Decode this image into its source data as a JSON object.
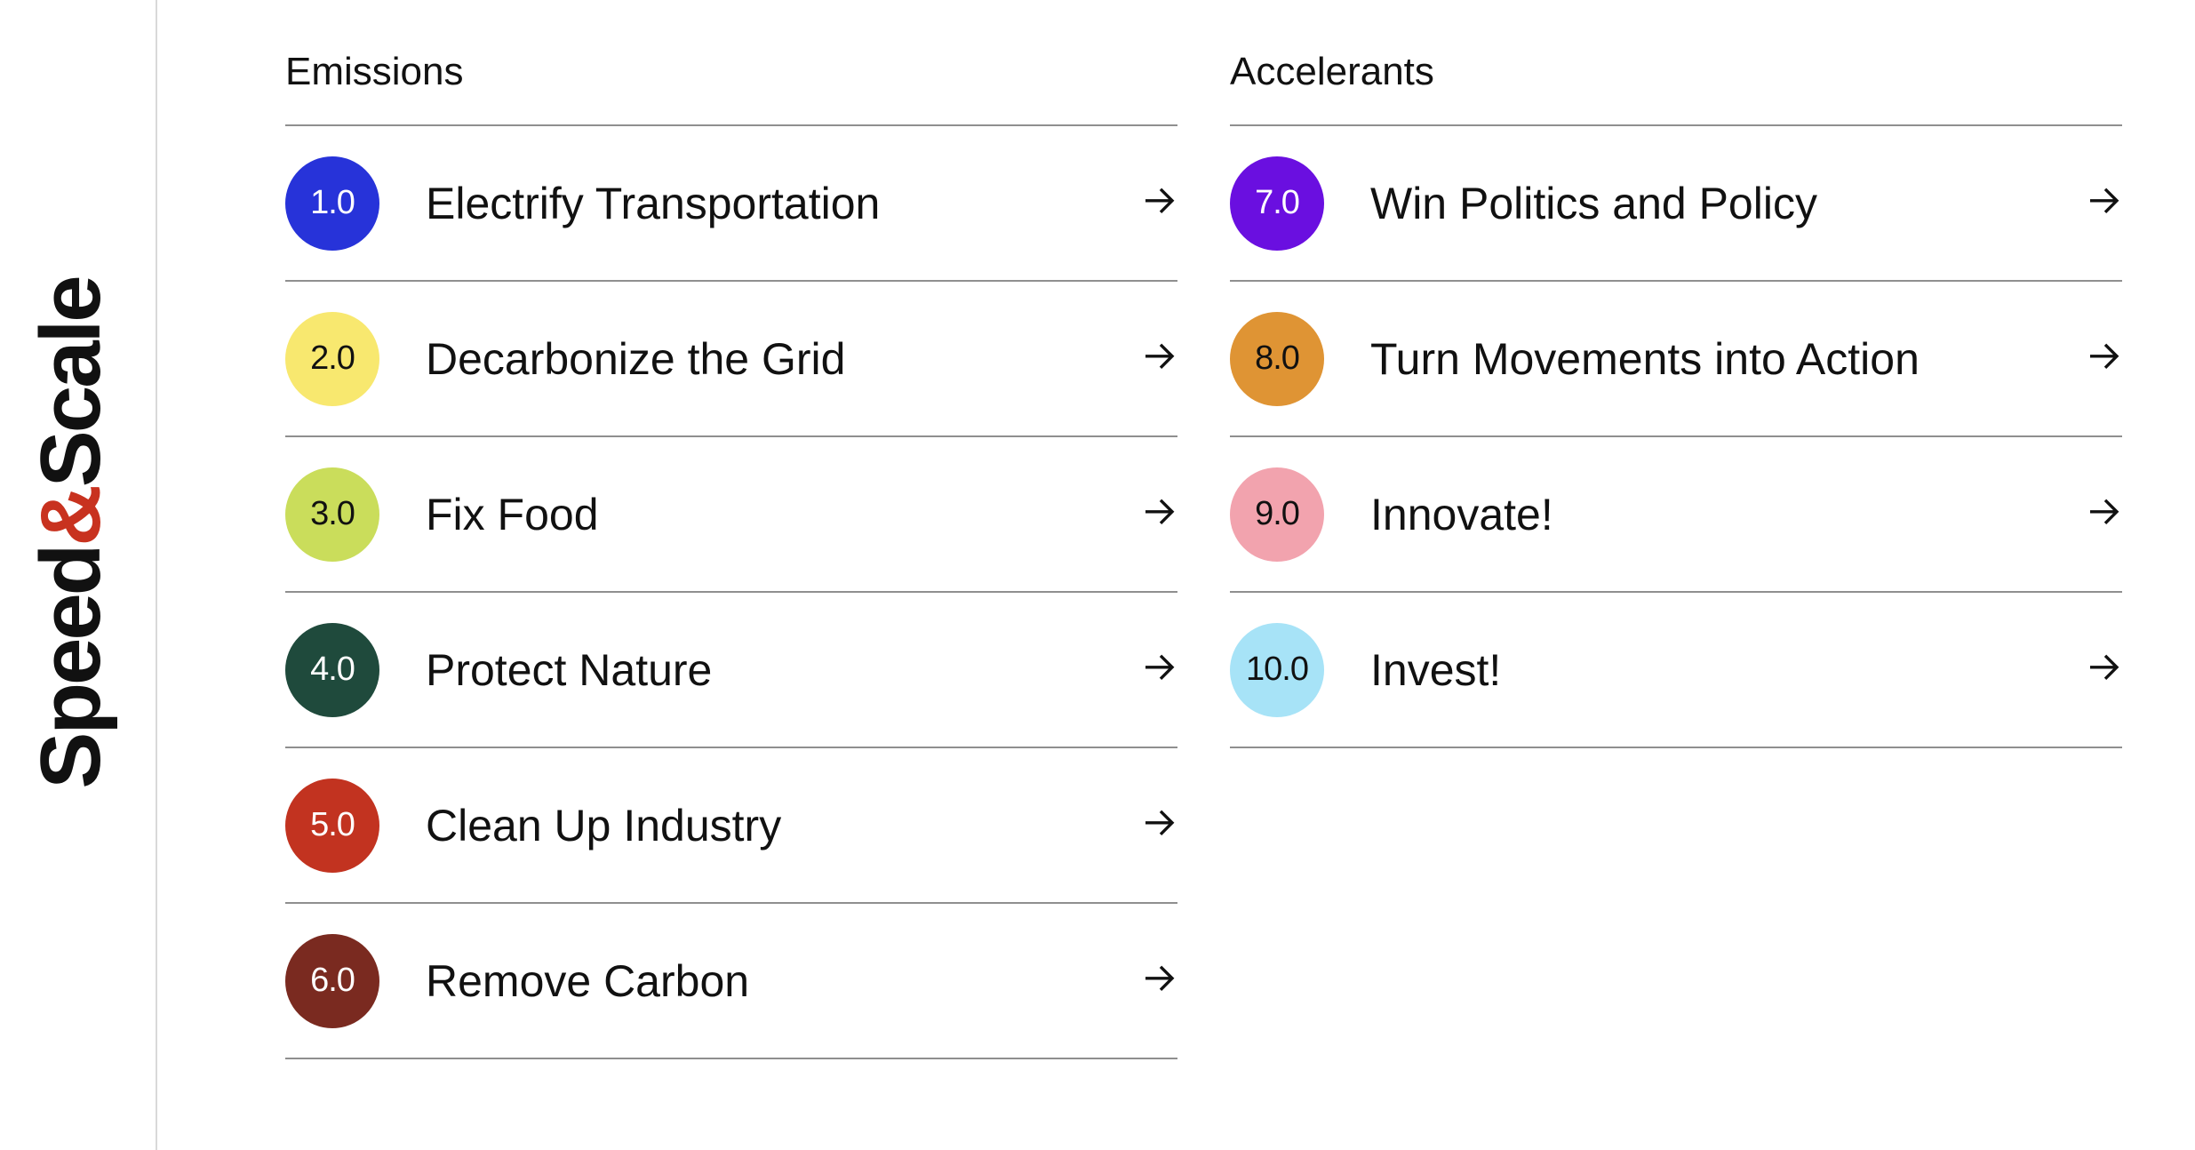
{
  "brand": {
    "part1": "Speed",
    "amp": "&",
    "part2": "Scale",
    "accent_color": "#c8321f"
  },
  "arrow_icon": "arrow-right-icon",
  "columns": [
    {
      "heading": "Emissions",
      "items": [
        {
          "number": "1.0",
          "label": "Electrify Transportation",
          "color": "#2733d9",
          "text_color": "#ffffff"
        },
        {
          "number": "2.0",
          "label": "Decarbonize the Grid",
          "color": "#f8e86f",
          "text_color": "#111111"
        },
        {
          "number": "3.0",
          "label": "Fix Food",
          "color": "#cadd5b",
          "text_color": "#111111"
        },
        {
          "number": "4.0",
          "label": "Protect Nature",
          "color": "#1f4a3c",
          "text_color": "#ffffff"
        },
        {
          "number": "5.0",
          "label": "Clean Up Industry",
          "color": "#c23320",
          "text_color": "#ffffff"
        },
        {
          "number": "6.0",
          "label": "Remove Carbon",
          "color": "#7a2a20",
          "text_color": "#ffffff"
        }
      ]
    },
    {
      "heading": "Accelerants",
      "items": [
        {
          "number": "7.0",
          "label": "Win Politics and Policy",
          "color": "#6a0fe0",
          "text_color": "#ffffff"
        },
        {
          "number": "8.0",
          "label": "Turn Movements into Action",
          "color": "#df9434",
          "text_color": "#111111"
        },
        {
          "number": "9.0",
          "label": "Innovate!",
          "color": "#f2a3ae",
          "text_color": "#111111"
        },
        {
          "number": "10.0",
          "label": "Invest!",
          "color": "#a7e3f7",
          "text_color": "#111111"
        }
      ]
    }
  ]
}
